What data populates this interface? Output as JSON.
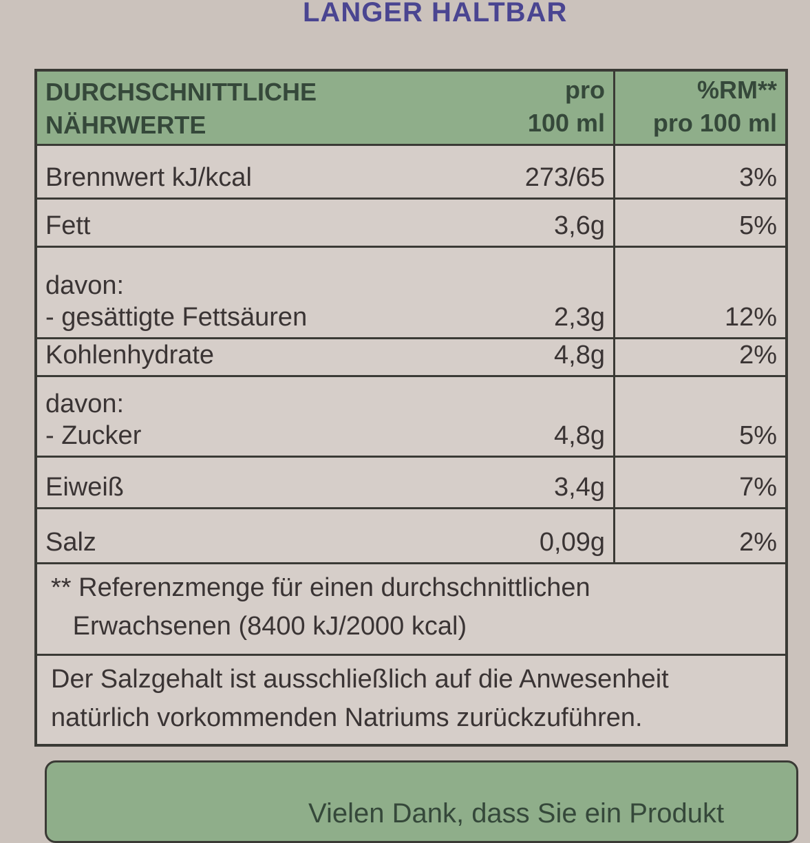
{
  "header": {
    "title": "LANGER HALTBAR"
  },
  "table": {
    "columns": [
      "DURCHSCHNITTLICHE\nNÄHRWERTE",
      "pro\n100 ml",
      "%RM**\npro 100 ml"
    ],
    "rows": [
      [
        "Brennwert kJ/kcal",
        "273/65",
        "3%"
      ],
      [
        "Fett",
        "3,6g",
        "5%"
      ],
      [
        "davon:\n- gesättigte Fettsäuren",
        "2,3g",
        "12%"
      ],
      [
        "Kohlenhydrate",
        "4,8g",
        "2%"
      ],
      [
        "davon:\n- Zucker",
        "4,8g",
        "5%"
      ],
      [
        "Eiweiß",
        "3,4g",
        "7%"
      ],
      [
        "Salz",
        "0,09g",
        "2%"
      ]
    ],
    "notes": [
      "** Referenzmenge für einen durchschnittlichen\n   Erwachsenen (8400 kJ/2000 kcal)",
      "Der Salzgehalt ist ausschließlich auf die Anwesenheit\nnatürlich vorkommenden Natriums zurückzuführen."
    ]
  },
  "footer": {
    "text": "Vielen Dank, dass Sie ein Produkt"
  }
}
